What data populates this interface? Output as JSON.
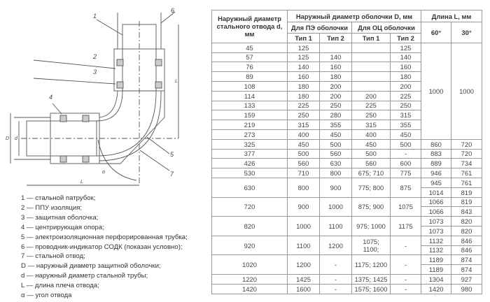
{
  "drawing": {
    "callouts": [
      "1",
      "2",
      "3",
      "4",
      "5",
      "6",
      "7"
    ],
    "dim_labels": {
      "D": "D",
      "d": "d",
      "L": "L",
      "alpha": "α"
    }
  },
  "legend": [
    "1 — стальной патрубок;",
    "2 — ППУ изоляция;",
    "3 — защитная оболочка;",
    "4 — центрирующая опора;",
    "5 — электроизоляционная перфорированная трубка;",
    "6 — проводник-индикатор СОДК (показан условно);",
    "7 — стальной отвод;",
    "D — наружный диаметр защитной оболочки;",
    "d — наружный диаметр стальной трубы;",
    "L — длина плеча отвода;",
    "α — угол отвода"
  ],
  "table": {
    "header": {
      "col_d": "Наружный диаметр стального отвода d, мм",
      "group_D": "Наружный диаметр оболочки D, мм",
      "pe": "Для ПЭ оболочки",
      "oc": "Для ОЦ оболочки",
      "type1": "Тип 1",
      "type2": "Тип 2",
      "length": "Длина L, мм",
      "a60": "60°",
      "a30": "30°"
    },
    "merged_length": {
      "l60": "1000",
      "l30": "1000"
    },
    "top_rows": [
      {
        "d": "45",
        "pe1": "125",
        "pe2": "",
        "oc1": "",
        "oc2": "125"
      },
      {
        "d": "57",
        "pe1": "125",
        "pe2": "140",
        "oc1": "",
        "oc2": "140"
      },
      {
        "d": "76",
        "pe1": "140",
        "pe2": "160",
        "oc1": "",
        "oc2": "160"
      },
      {
        "d": "89",
        "pe1": "160",
        "pe2": "180",
        "oc1": "",
        "oc2": "180"
      },
      {
        "d": "108",
        "pe1": "180",
        "pe2": "200",
        "oc1": "",
        "oc2": "200"
      },
      {
        "d": "114",
        "pe1": "180",
        "pe2": "200",
        "oc1": "200",
        "oc2": "225"
      },
      {
        "d": "133",
        "pe1": "225",
        "pe2": "250",
        "oc1": "225",
        "oc2": "250"
      },
      {
        "d": "159",
        "pe1": "250",
        "pe2": "280",
        "oc1": "250",
        "oc2": "315"
      },
      {
        "d": "219",
        "pe1": "315",
        "pe2": "355",
        "oc1": "315",
        "oc2": "355"
      },
      {
        "d": "273",
        "pe1": "400",
        "pe2": "450",
        "oc1": "400",
        "oc2": "450"
      }
    ],
    "rows": [
      {
        "d": "325",
        "pe1": "450",
        "pe2": "500",
        "oc1": "450",
        "oc2": "500",
        "l60": [
          "860"
        ],
        "l30": [
          "720"
        ]
      },
      {
        "d": "377",
        "pe1": "500",
        "pe2": "560",
        "oc1": "500",
        "oc2": "-",
        "l60": [
          "883"
        ],
        "l30": [
          "720"
        ]
      },
      {
        "d": "426",
        "pe1": "560",
        "pe2": "630",
        "oc1": "560",
        "oc2": "600",
        "l60": [
          "889"
        ],
        "l30": [
          "734"
        ]
      },
      {
        "d": "530",
        "pe1": "710",
        "pe2": "800",
        "oc1": "675; 710",
        "oc2": "775",
        "l60": [
          "946"
        ],
        "l30": [
          "761"
        ]
      },
      {
        "d": "630",
        "pe1": "800",
        "pe2": "900",
        "oc1": "775; 800",
        "oc2": "875",
        "l60": [
          "945",
          "1014"
        ],
        "l30": [
          "761",
          "819"
        ]
      },
      {
        "d": "720",
        "pe1": "900",
        "pe2": "1000",
        "oc1": "875; 900",
        "oc2": "1075",
        "l60": [
          "1066",
          "1066"
        ],
        "l30": [
          "819",
          "843"
        ]
      },
      {
        "d": "820",
        "pe1": "1000",
        "pe2": "1100",
        "oc1": "975; 1000",
        "oc2": "1175",
        "l60": [
          "1073",
          "1073"
        ],
        "l30": [
          "820",
          "820"
        ]
      },
      {
        "d": "920",
        "pe1": "1100",
        "pe2": "1200",
        "oc1": "1075;\n1100;",
        "oc2": "-",
        "l60": [
          "1132",
          "1132"
        ],
        "l30": [
          "846",
          "846"
        ]
      },
      {
        "d": "1020",
        "pe1": "1200",
        "pe2": "-",
        "oc1": "1175; 1200",
        "oc2": "-",
        "l60": [
          "1189",
          "1189"
        ],
        "l30": [
          "874",
          "874"
        ]
      },
      {
        "d": "1220",
        "pe1": "1425",
        "pe2": "-",
        "oc1": "1375; 1425",
        "oc2": "-",
        "l60": [
          "1304"
        ],
        "l30": [
          "927"
        ]
      },
      {
        "d": "1420",
        "pe1": "1600",
        "pe2": "-",
        "oc1": "1575; 1600",
        "oc2": "-",
        "l60": [
          "1420"
        ],
        "l30": [
          "980"
        ]
      }
    ]
  }
}
